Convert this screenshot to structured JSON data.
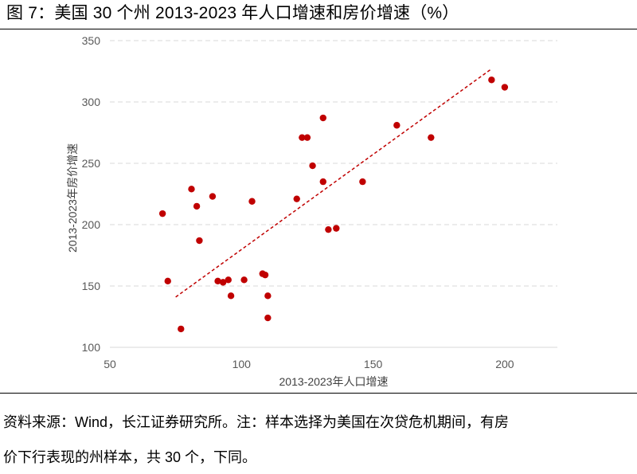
{
  "header": {
    "title": "图 7：美国 30 个州 2013-2023 年人口增速和房价增速（%）"
  },
  "footer": {
    "line1": "资料来源：Wind，长江证券研究所。注：样本选择为美国在次贷危机期间，有房",
    "line2": "价下行表现的州样本，共 30 个，下同。"
  },
  "chart_data": {
    "type": "scatter",
    "xlabel": "2013-2023年人口增速",
    "ylabel": "2013-2023年房价增速",
    "xlim": [
      50,
      220
    ],
    "ylim": [
      100,
      350
    ],
    "x_ticks": [
      50,
      100,
      150,
      200
    ],
    "y_ticks": [
      100,
      150,
      200,
      250,
      300,
      350
    ],
    "grid": "horizontal-dashed",
    "point_color": "#C00000",
    "trendline_color": "#C00000",
    "trendline": {
      "x": [
        75,
        195
      ],
      "y": [
        141,
        327
      ]
    },
    "points": [
      {
        "x": 70,
        "y": 209
      },
      {
        "x": 72,
        "y": 154
      },
      {
        "x": 77,
        "y": 115
      },
      {
        "x": 81,
        "y": 229
      },
      {
        "x": 83,
        "y": 215
      },
      {
        "x": 84,
        "y": 187
      },
      {
        "x": 89,
        "y": 223
      },
      {
        "x": 91,
        "y": 154
      },
      {
        "x": 93,
        "y": 153
      },
      {
        "x": 95,
        "y": 155
      },
      {
        "x": 96,
        "y": 142
      },
      {
        "x": 101,
        "y": 155
      },
      {
        "x": 104,
        "y": 219
      },
      {
        "x": 108,
        "y": 160
      },
      {
        "x": 109,
        "y": 159
      },
      {
        "x": 110,
        "y": 142
      },
      {
        "x": 110,
        "y": 124
      },
      {
        "x": 121,
        "y": 221
      },
      {
        "x": 123,
        "y": 271
      },
      {
        "x": 125,
        "y": 271
      },
      {
        "x": 127,
        "y": 248
      },
      {
        "x": 131,
        "y": 287
      },
      {
        "x": 131,
        "y": 235
      },
      {
        "x": 133,
        "y": 196
      },
      {
        "x": 136,
        "y": 197
      },
      {
        "x": 146,
        "y": 235
      },
      {
        "x": 159,
        "y": 281
      },
      {
        "x": 172,
        "y": 271
      },
      {
        "x": 195,
        "y": 318
      },
      {
        "x": 200,
        "y": 312
      }
    ]
  }
}
